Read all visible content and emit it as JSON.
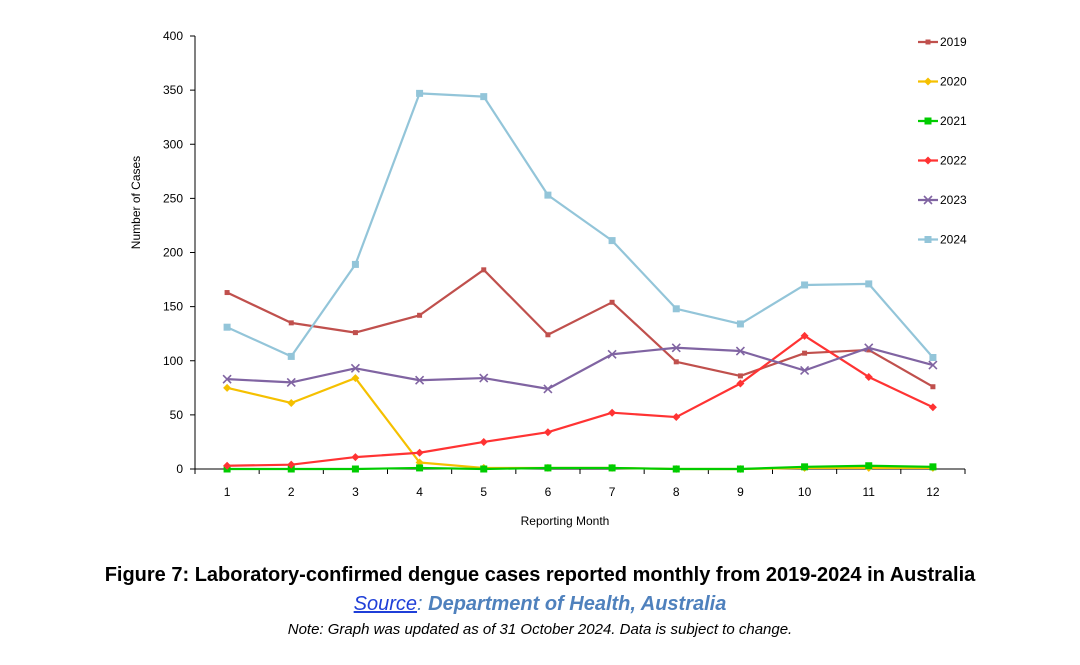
{
  "chart_data": {
    "type": "line",
    "title": "",
    "xlabel": "Reporting Month",
    "ylabel": "Number of Cases",
    "ylim": [
      0,
      400
    ],
    "yticks": [
      0,
      50,
      100,
      150,
      200,
      250,
      300,
      350,
      400
    ],
    "categories": [
      "1",
      "2",
      "3",
      "4",
      "5",
      "6",
      "7",
      "8",
      "9",
      "10",
      "11",
      "12"
    ],
    "legend_position": "right",
    "series": [
      {
        "name": "2019",
        "color": "#c0504d",
        "marker": "square-small",
        "values": [
          163,
          135,
          126,
          142,
          184,
          124,
          154,
          99,
          86,
          107,
          110,
          76
        ]
      },
      {
        "name": "2020",
        "color": "#f5c000",
        "marker": "diamond",
        "values": [
          75,
          61,
          84,
          6,
          1,
          1,
          1,
          0,
          0,
          1,
          1,
          1
        ]
      },
      {
        "name": "2021",
        "color": "#00cc00",
        "marker": "square",
        "values": [
          0,
          0,
          0,
          1,
          0,
          1,
          1,
          0,
          0,
          2,
          3,
          2
        ]
      },
      {
        "name": "2022",
        "color": "#ff3333",
        "marker": "diamond",
        "values": [
          3,
          4,
          11,
          15,
          25,
          34,
          52,
          48,
          79,
          123,
          85,
          57
        ]
      },
      {
        "name": "2023",
        "color": "#8064a2",
        "marker": "x",
        "values": [
          83,
          80,
          93,
          82,
          84,
          74,
          106,
          112,
          109,
          91,
          112,
          96
        ]
      },
      {
        "name": "2024",
        "color": "#93c5d9",
        "marker": "square",
        "values": [
          131,
          104,
          189,
          347,
          344,
          253,
          211,
          148,
          134,
          170,
          171,
          103
        ]
      }
    ]
  },
  "caption": {
    "title": "Figure 7: Laboratory-confirmed dengue cases reported monthly from 2019-2024 in Australia",
    "source_link": "Source",
    "source_sep": ":",
    "source_org": "Department of Health, Australia",
    "note": "Note: Graph was updated as of 31 October 2024. Data is subject to change."
  }
}
